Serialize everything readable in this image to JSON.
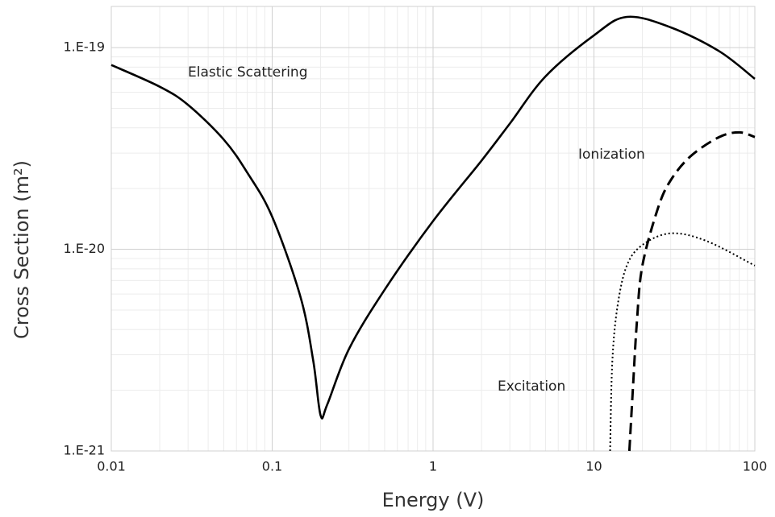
{
  "chart_data": {
    "type": "line",
    "x_label": "Energy (V)",
    "y_label": "Cross Section (m²)",
    "xscale": "log",
    "yscale": "log",
    "xlim": [
      0.01,
      100
    ],
    "ylim": [
      1e-21,
      1.6e-19
    ],
    "xticks": [
      0.01,
      0.1,
      1,
      10,
      100
    ],
    "yticks": [
      {
        "value": 1e-21,
        "label": "1.E-21"
      },
      {
        "value": 1e-20,
        "label": "1.E-20"
      },
      {
        "value": 1e-19,
        "label": "1.E-19"
      }
    ],
    "grid": true,
    "minor_grid": true,
    "series": [
      {
        "name": "Elastic Scattering",
        "color": "#000000",
        "style": "solid",
        "x": [
          0.01,
          0.02,
          0.03,
          0.05,
          0.07,
          0.1,
          0.15,
          0.18,
          0.2,
          0.22,
          0.3,
          0.5,
          1,
          2,
          3,
          5,
          10,
          16,
          30,
          60,
          100
        ],
        "values": [
          8.2e-20,
          6.4e-20,
          5.2e-20,
          3.5e-20,
          2.4e-20,
          1.45e-20,
          5.8e-21,
          2.8e-21,
          1.5e-21,
          1.7e-21,
          3.2e-21,
          6.3e-21,
          1.38e-20,
          2.75e-20,
          4.2e-20,
          7.2e-20,
          1.15e-19,
          1.42e-19,
          1.26e-19,
          9.6e-20,
          7e-20
        ]
      },
      {
        "name": "Ionization",
        "color": "#000000",
        "style": "dashed",
        "x": [
          16.6,
          17.5,
          18.5,
          20,
          25,
          30,
          40,
          60,
          80,
          100
        ],
        "values": [
          1e-21,
          2.1e-21,
          4.4e-21,
          8.3e-21,
          1.6e-20,
          2.2e-20,
          2.9e-20,
          3.6e-20,
          3.8e-20,
          3.6e-20
        ]
      },
      {
        "name": "Excitation",
        "color": "#000000",
        "style": "dotted",
        "x": [
          12.6,
          13,
          14,
          16,
          20,
          30,
          50,
          100
        ],
        "values": [
          1e-21,
          2.75e-21,
          5.2e-21,
          8.3e-21,
          1.05e-20,
          1.2e-20,
          1.1e-20,
          8.3e-21
        ]
      }
    ]
  }
}
